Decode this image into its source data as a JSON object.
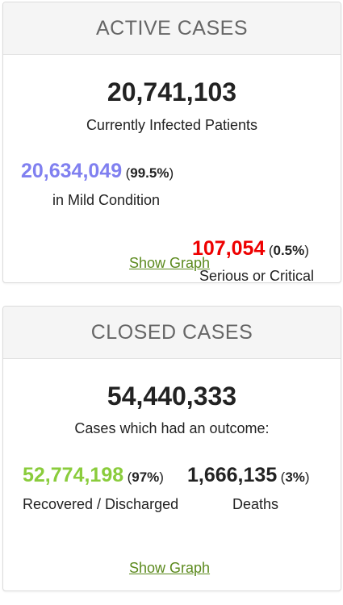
{
  "active": {
    "header": "ACTIVE CASES",
    "total": "20,741,103",
    "total_label": "Currently Infected Patients",
    "mild": {
      "value": "20,634,049",
      "pct": "99.5%",
      "label": "in Mild Condition",
      "color": "#8080f0"
    },
    "serious": {
      "value": "107,054",
      "pct": "0.5%",
      "label": "Serious or Critical",
      "color": "#ee0000"
    },
    "show_graph": "Show Graph"
  },
  "closed": {
    "header": "CLOSED CASES",
    "total": "54,440,333",
    "total_label": "Cases which had an outcome:",
    "recovered": {
      "value": "52,774,198",
      "pct": "97%",
      "label": "Recovered / Discharged",
      "color": "#8acc3c"
    },
    "deaths": {
      "value": "1,666,135",
      "pct": "3%",
      "label": "Deaths",
      "color": "#222222"
    },
    "show_graph": "Show Graph"
  },
  "colors": {
    "link": "#5c8a1e",
    "header_bg": "#f5f5f5"
  }
}
